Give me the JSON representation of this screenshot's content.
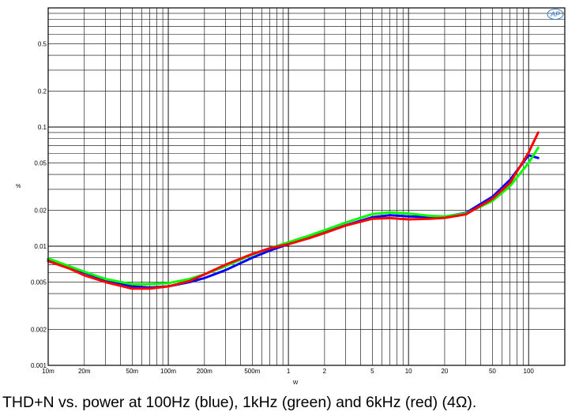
{
  "caption": "THD+N vs. power at 100Hz (blue), 1kHz (green) and 6kHz (red) (4Ω).",
  "chart_data": {
    "type": "line",
    "title": "",
    "xlabel": "W",
    "ylabel": "%",
    "xscale": "log",
    "yscale": "log",
    "xlim": [
      0.01,
      200
    ],
    "ylim": [
      0.001,
      1
    ],
    "grid": true,
    "logo": "AP",
    "x_ticks": [
      {
        "v": 0.01,
        "label": "10m"
      },
      {
        "v": 0.02,
        "label": "20m"
      },
      {
        "v": 0.05,
        "label": "50m"
      },
      {
        "v": 0.1,
        "label": "100m"
      },
      {
        "v": 0.2,
        "label": "200m"
      },
      {
        "v": 0.5,
        "label": "500m"
      },
      {
        "v": 1,
        "label": "1"
      },
      {
        "v": 2,
        "label": "2"
      },
      {
        "v": 5,
        "label": "5"
      },
      {
        "v": 10,
        "label": "10"
      },
      {
        "v": 20,
        "label": "20"
      },
      {
        "v": 50,
        "label": "50"
      },
      {
        "v": 100,
        "label": "100"
      }
    ],
    "y_ticks": [
      {
        "v": 0.001,
        "label": "0.001"
      },
      {
        "v": 0.002,
        "label": "0.002"
      },
      {
        "v": 0.005,
        "label": "0.005"
      },
      {
        "v": 0.01,
        "label": "0.01"
      },
      {
        "v": 0.02,
        "label": "0.02"
      },
      {
        "v": 0.05,
        "label": "0.05"
      },
      {
        "v": 0.1,
        "label": "0.1"
      },
      {
        "v": 0.2,
        "label": "0.2"
      },
      {
        "v": 0.5,
        "label": "0.5"
      }
    ],
    "series": [
      {
        "color": "#0000ff",
        "x": [
          0.01,
          0.02,
          0.03,
          0.05,
          0.07,
          0.1,
          0.15,
          0.2,
          0.3,
          0.5,
          0.7,
          1,
          1.5,
          2,
          3,
          5,
          7,
          10,
          15,
          20,
          30,
          50,
          70,
          100,
          120
        ],
        "y": [
          0.0078,
          0.006,
          0.0052,
          0.0046,
          0.0045,
          0.0046,
          0.005,
          0.0054,
          0.0063,
          0.008,
          0.0092,
          0.0104,
          0.0118,
          0.013,
          0.015,
          0.0175,
          0.0182,
          0.0178,
          0.0176,
          0.0177,
          0.019,
          0.026,
          0.036,
          0.058,
          0.055
        ]
      },
      {
        "color": "#00ff00",
        "x": [
          0.01,
          0.02,
          0.03,
          0.05,
          0.07,
          0.1,
          0.15,
          0.2,
          0.3,
          0.5,
          0.7,
          1,
          1.5,
          2,
          3,
          5,
          7,
          10,
          15,
          20,
          30,
          50,
          70,
          100,
          120
        ],
        "y": [
          0.0079,
          0.0061,
          0.0053,
          0.0048,
          0.0048,
          0.0049,
          0.0053,
          0.0058,
          0.0068,
          0.0085,
          0.0096,
          0.0108,
          0.0123,
          0.0136,
          0.0158,
          0.0186,
          0.0192,
          0.0188,
          0.018,
          0.0178,
          0.0188,
          0.024,
          0.032,
          0.05,
          0.067
        ]
      },
      {
        "color": "#ff0000",
        "x": [
          0.01,
          0.015,
          0.02,
          0.03,
          0.05,
          0.07,
          0.1,
          0.15,
          0.2,
          0.3,
          0.5,
          0.7,
          1,
          1.5,
          2,
          3,
          5,
          7,
          10,
          15,
          20,
          30,
          50,
          70,
          100,
          120
        ],
        "y": [
          0.0075,
          0.0065,
          0.0057,
          0.005,
          0.0044,
          0.0044,
          0.0046,
          0.0051,
          0.0058,
          0.007,
          0.0086,
          0.0096,
          0.0104,
          0.0117,
          0.0129,
          0.0149,
          0.017,
          0.0172,
          0.0168,
          0.017,
          0.0173,
          0.0185,
          0.025,
          0.034,
          0.061,
          0.09
        ]
      }
    ]
  }
}
